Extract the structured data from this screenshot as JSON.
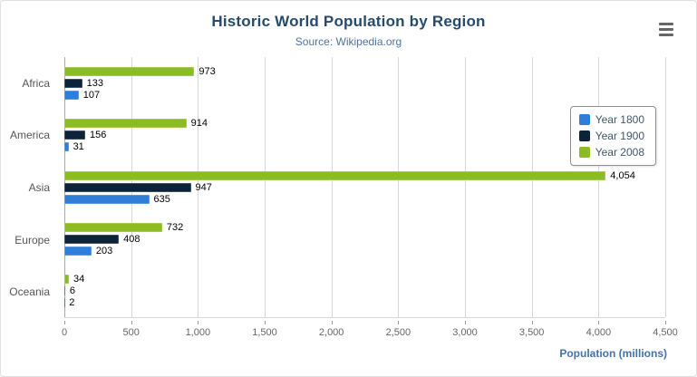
{
  "chart_data": {
    "type": "bar",
    "title": "Historic World Population by Region",
    "subtitle": "Source: Wikipedia.org",
    "categories": [
      "Africa",
      "America",
      "Asia",
      "Europe",
      "Oceania"
    ],
    "series": [
      {
        "name": "Year 1800",
        "color": "#2f7ed8",
        "values": [
          107,
          31,
          635,
          203,
          2
        ]
      },
      {
        "name": "Year 1900",
        "color": "#0d233a",
        "values": [
          133,
          156,
          947,
          408,
          6
        ]
      },
      {
        "name": "Year 2008",
        "color": "#8bbc21",
        "values": [
          973,
          914,
          4054,
          732,
          34
        ]
      }
    ],
    "bar_order_top_to_bottom": [
      "Year 2008",
      "Year 1900",
      "Year 1800"
    ],
    "xlabel": "Population (millions)",
    "ylabel": "",
    "xlim": [
      0,
      4500
    ],
    "tick_interval": 500,
    "tick_labels": [
      "0",
      "500",
      "1,000",
      "1,500",
      "2,000",
      "2,500",
      "3,000",
      "3,500",
      "4,000",
      "4,500"
    ],
    "grid": true,
    "legend_position": "right",
    "data_label_format": "thousands-separated"
  },
  "ui": {
    "menu_icon": "hamburger-menu-icon"
  }
}
